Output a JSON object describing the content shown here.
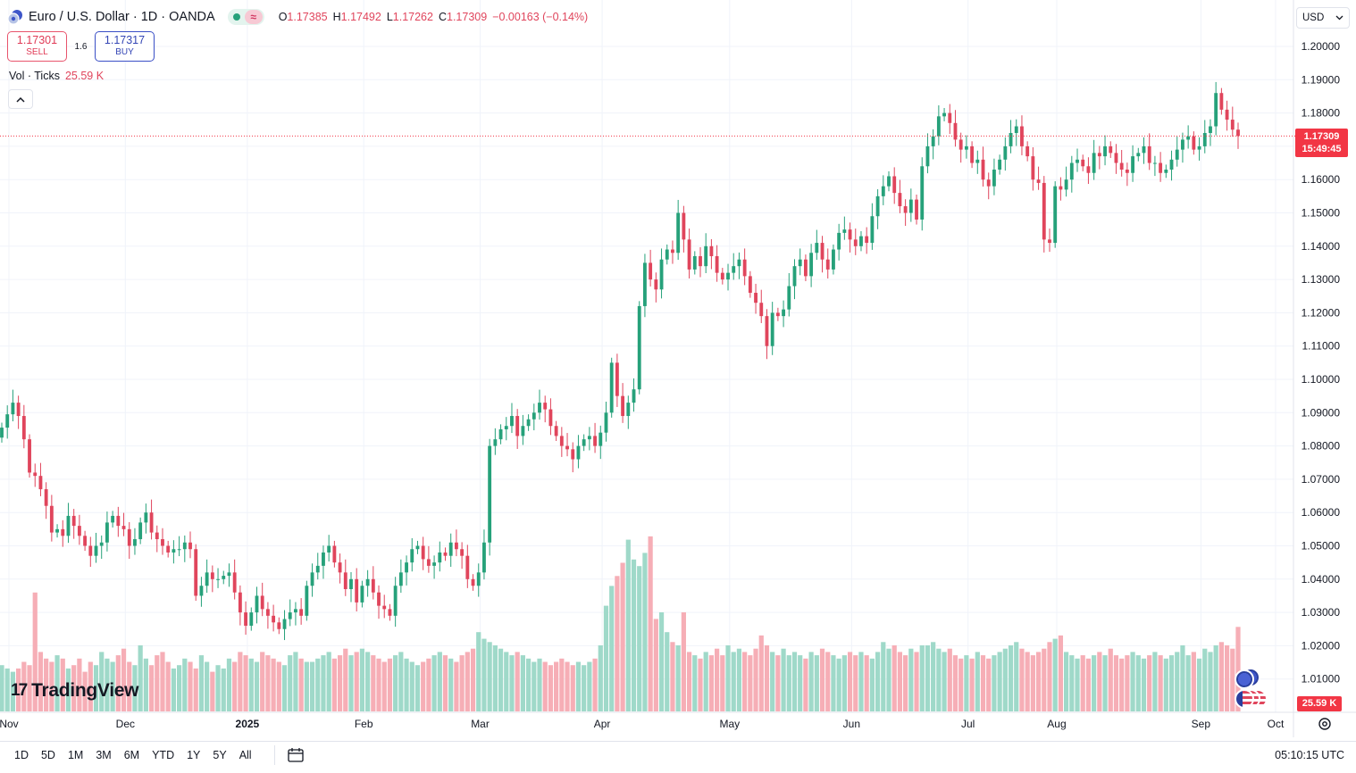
{
  "header": {
    "symbol_title": "Euro / U.S. Dollar · 1D · OANDA",
    "status_wave": "≈",
    "ohlc": {
      "o_label": "O",
      "o_value": "1.17385",
      "h_label": "H",
      "h_value": "1.17492",
      "l_label": "L",
      "l_value": "1.17262",
      "c_label": "C",
      "c_value": "1.17309",
      "change": "−0.00163 (−0.14%)"
    }
  },
  "trade": {
    "sell_price": "1.17301",
    "sell_label": "SELL",
    "spread": "1.6",
    "buy_price": "1.17317",
    "buy_label": "BUY"
  },
  "volume_legend": {
    "label": "Vol · Ticks",
    "value": "25.59 K"
  },
  "currency": {
    "value": "USD"
  },
  "last_price_tag": {
    "price": "1.17309",
    "countdown": "15:49:45"
  },
  "volume_tag": "25.59 K",
  "logo_text": "TradingView",
  "logo_mark": "17",
  "range_buttons": [
    "1D",
    "5D",
    "1M",
    "3M",
    "6M",
    "YTD",
    "1Y",
    "5Y",
    "All"
  ],
  "clock": "05:10:15 UTC",
  "colors": {
    "up": "#26a17a",
    "down": "#e0455c",
    "volume_up": "#9fd9c9",
    "volume_down": "#f6aeb6",
    "price_line": "#f23645"
  },
  "chart_data": {
    "type": "candlestick",
    "symbol": "EURUSD",
    "interval": "1D",
    "x_labels": [
      "Nov",
      "Dec",
      "2025",
      "Feb",
      "Mar",
      "Apr",
      "May",
      "Jun",
      "Jul",
      "Aug",
      "Sep",
      "Oct"
    ],
    "y_ticks": [
      1.01,
      1.02,
      1.03,
      1.04,
      1.05,
      1.06,
      1.07,
      1.08,
      1.09,
      1.1,
      1.11,
      1.12,
      1.13,
      1.14,
      1.15,
      1.16,
      1.17,
      1.18,
      1.19,
      1.2
    ],
    "y_range": [
      1.0,
      1.2
    ],
    "grid": true,
    "last_close": 1.17309,
    "closes": [
      1.0855,
      1.0895,
      1.093,
      1.089,
      1.082,
      1.072,
      1.071,
      1.067,
      1.062,
      1.054,
      1.055,
      1.053,
      1.059,
      1.056,
      1.053,
      1.05,
      1.047,
      1.05,
      1.051,
      1.057,
      1.059,
      1.056,
      1.055,
      1.05,
      1.052,
      1.057,
      1.06,
      1.054,
      1.052,
      1.05,
      1.048,
      1.049,
      1.049,
      1.051,
      1.049,
      1.035,
      1.038,
      1.042,
      1.04,
      1.04,
      1.041,
      1.042,
      1.036,
      1.03,
      1.026,
      1.03,
      1.035,
      1.031,
      1.029,
      1.027,
      1.025,
      1.028,
      1.03,
      1.031,
      1.029,
      1.038,
      1.042,
      1.044,
      1.048,
      1.05,
      1.045,
      1.042,
      1.037,
      1.04,
      1.033,
      1.038,
      1.04,
      1.036,
      1.032,
      1.031,
      1.029,
      1.038,
      1.042,
      1.045,
      1.049,
      1.05,
      1.046,
      1.044,
      1.045,
      1.048,
      1.047,
      1.051,
      1.049,
      1.047,
      1.04,
      1.038,
      1.042,
      1.051,
      1.08,
      1.082,
      1.085,
      1.086,
      1.089,
      1.083,
      1.086,
      1.088,
      1.09,
      1.093,
      1.091,
      1.086,
      1.083,
      1.08,
      1.079,
      1.076,
      1.08,
      1.082,
      1.083,
      1.08,
      1.084,
      1.09,
      1.105,
      1.095,
      1.089,
      1.093,
      1.097,
      1.122,
      1.135,
      1.13,
      1.127,
      1.136,
      1.139,
      1.138,
      1.15,
      1.142,
      1.133,
      1.137,
      1.134,
      1.14,
      1.137,
      1.132,
      1.13,
      1.132,
      1.134,
      1.136,
      1.131,
      1.126,
      1.123,
      1.119,
      1.11,
      1.12,
      1.119,
      1.121,
      1.128,
      1.134,
      1.136,
      1.131,
      1.138,
      1.141,
      1.136,
      1.133,
      1.139,
      1.144,
      1.145,
      1.142,
      1.14,
      1.143,
      1.141,
      1.149,
      1.155,
      1.158,
      1.161,
      1.156,
      1.152,
      1.15,
      1.154,
      1.148,
      1.164,
      1.17,
      1.173,
      1.179,
      1.18,
      1.177,
      1.172,
      1.169,
      1.17,
      1.165,
      1.166,
      1.16,
      1.158,
      1.163,
      1.166,
      1.17,
      1.174,
      1.176,
      1.17,
      1.167,
      1.16,
      1.159,
      1.142,
      1.141,
      1.158,
      1.157,
      1.16,
      1.165,
      1.166,
      1.164,
      1.162,
      1.168,
      1.167,
      1.17,
      1.168,
      1.165,
      1.163,
      1.162,
      1.167,
      1.168,
      1.17,
      1.165,
      1.165,
      1.162,
      1.163,
      1.166,
      1.169,
      1.172,
      1.173,
      1.169,
      1.17,
      1.174,
      1.176,
      1.186,
      1.181,
      1.178,
      1.175,
      1.1731
    ],
    "volume_ticks_k": [
      14,
      13,
      12,
      13,
      15,
      14,
      36,
      18,
      16,
      15,
      17,
      16,
      13,
      14,
      16,
      12,
      15,
      14,
      18,
      16,
      15,
      17,
      19,
      15,
      14,
      20,
      16,
      14,
      17,
      18,
      15,
      13,
      14,
      16,
      15,
      13,
      17,
      15,
      12,
      14,
      13,
      16,
      15,
      18,
      17,
      16,
      15,
      18,
      17,
      16,
      15,
      14,
      17,
      18,
      16,
      15,
      15,
      16,
      17,
      18,
      16,
      17,
      19,
      17,
      18,
      19,
      18,
      17,
      16,
      15,
      16,
      17,
      18,
      16,
      15,
      14,
      15,
      16,
      17,
      18,
      17,
      16,
      15,
      17,
      18,
      19,
      24,
      22,
      21,
      20,
      19,
      18,
      17,
      18,
      17,
      16,
      15,
      16,
      15,
      14,
      15,
      16,
      15,
      14,
      15,
      14,
      15,
      16,
      20,
      32,
      38,
      41,
      45,
      52,
      46,
      44,
      48,
      53,
      28,
      30,
      24,
      21,
      20,
      30,
      18,
      17,
      16,
      18,
      17,
      19,
      17,
      20,
      18,
      19,
      18,
      17,
      19,
      23,
      20,
      18,
      17,
      19,
      17,
      18,
      17,
      16,
      18,
      17,
      19,
      18,
      17,
      16,
      17,
      18,
      17,
      18,
      17,
      16,
      18,
      21,
      19,
      20,
      18,
      17,
      19,
      18,
      20,
      20,
      21,
      19,
      18,
      19,
      17,
      16,
      17,
      16,
      18,
      17,
      16,
      17,
      18,
      19,
      20,
      21,
      19,
      18,
      17,
      18,
      19,
      21,
      22,
      23,
      18,
      17,
      16,
      17,
      16,
      17,
      18,
      17,
      19,
      17,
      16,
      17,
      18,
      17,
      16,
      17,
      18,
      17,
      16,
      17,
      18,
      20,
      17,
      18,
      16,
      19,
      18,
      20,
      21,
      20,
      19,
      25.59
    ]
  }
}
